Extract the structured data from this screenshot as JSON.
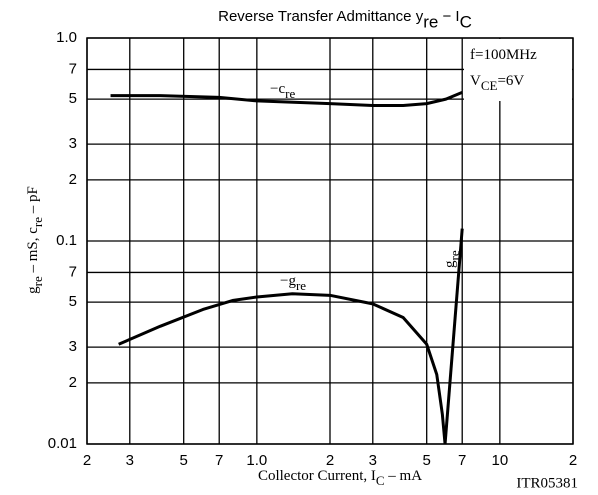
{
  "chart_data": {
    "type": "line",
    "title": [
      "Reverse Transfer Admittance  y",
      "re",
      " − I",
      "C"
    ],
    "xlabel": [
      "Collector Current, I",
      "C",
      "  –  mA"
    ],
    "ylabel": [
      "g",
      "re",
      "  –  mS,  c",
      "re",
      "  –  pF"
    ],
    "conditions": [
      [
        "f=100MHz"
      ],
      [
        "V",
        "CE",
        "=6V"
      ]
    ],
    "code": "ITR05381",
    "log_x": true,
    "log_y": true,
    "grid": true,
    "xlim": [
      0.2,
      20
    ],
    "ylim": [
      0.01,
      1.0
    ],
    "xticks": [
      {
        "value": 0.2,
        "label": "2"
      },
      {
        "value": 0.3,
        "label": "3"
      },
      {
        "value": 0.5,
        "label": "5"
      },
      {
        "value": 0.7,
        "label": "7"
      },
      {
        "value": 1.0,
        "label": "1.0"
      },
      {
        "value": 2,
        "label": "2"
      },
      {
        "value": 3,
        "label": "3"
      },
      {
        "value": 5,
        "label": "5"
      },
      {
        "value": 7,
        "label": "7"
      },
      10,
      {
        "value": 20,
        "label": "2"
      }
    ],
    "yticks": [
      {
        "value": 1.0,
        "label": "1.0"
      },
      {
        "value": 0.7,
        "label": "7"
      },
      {
        "value": 0.5,
        "label": "5"
      },
      {
        "value": 0.3,
        "label": "3"
      },
      {
        "value": 0.2,
        "label": "2"
      },
      0.1,
      {
        "value": 0.07,
        "label": "7"
      },
      {
        "value": 0.05,
        "label": "5"
      },
      {
        "value": 0.03,
        "label": "3"
      },
      {
        "value": 0.02,
        "label": "2"
      },
      0.01
    ],
    "series": [
      {
        "label": [
          "−c",
          "re"
        ],
        "color": "#000000",
        "x": [
          0.25,
          0.4,
          0.7,
          1.0,
          2,
          3,
          4,
          5,
          6,
          7
        ],
        "values": [
          0.52,
          0.52,
          0.51,
          0.49,
          0.475,
          0.465,
          0.465,
          0.475,
          0.5,
          0.54
        ]
      },
      {
        "label": [
          "−g",
          "re"
        ],
        "color": "#000000",
        "x": [
          0.27,
          0.4,
          0.6,
          0.8,
          1.0,
          1.4,
          2.0,
          3.0,
          4.0,
          5.0,
          5.5,
          5.8,
          5.95
        ],
        "values": [
          0.031,
          0.038,
          0.046,
          0.051,
          0.053,
          0.055,
          0.054,
          0.049,
          0.042,
          0.031,
          0.022,
          0.014,
          0.01
        ]
      },
      {
        "label": [
          "g",
          "re"
        ],
        "color": "#000000",
        "x": [
          5.95,
          7.0
        ],
        "values": [
          0.01,
          0.115
        ]
      }
    ]
  }
}
